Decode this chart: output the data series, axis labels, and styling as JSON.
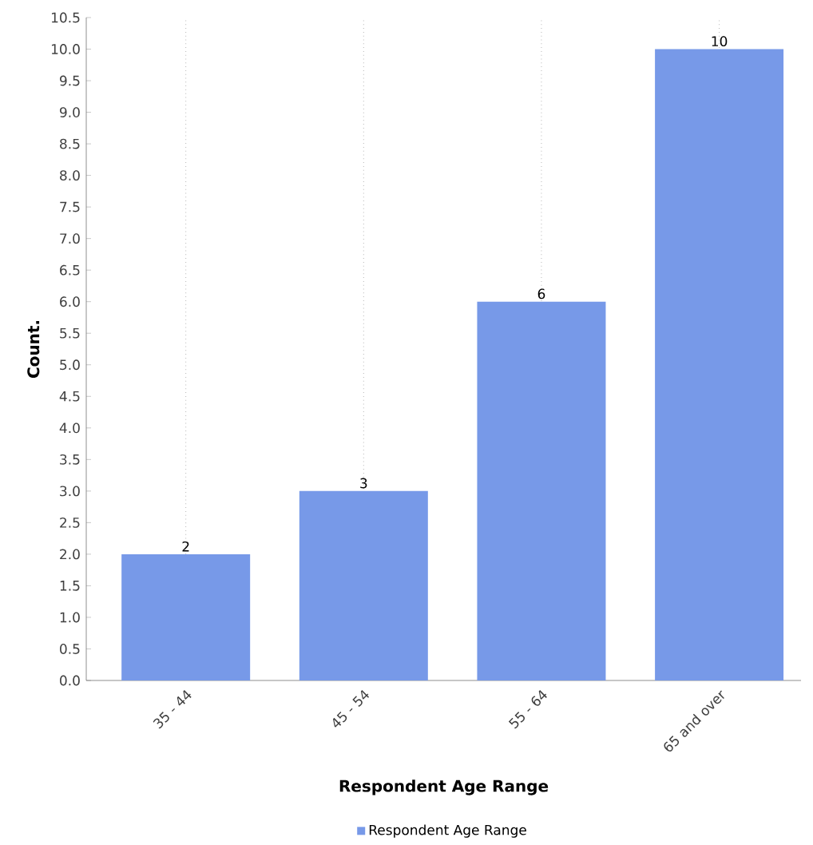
{
  "chart_data": {
    "type": "bar",
    "xlabel": "Respondent Age Range",
    "ylabel": "Count.",
    "categories": [
      "35 - 44",
      "45 - 54",
      "55 - 64",
      "65 and over"
    ],
    "series": [
      {
        "name": "Respondent Age Range",
        "color": "#7799e8",
        "values": [
          2,
          3,
          6,
          10
        ]
      }
    ],
    "ylim": [
      0,
      10.5
    ],
    "yticks": [
      {
        "value": 0,
        "label": "0.0"
      },
      {
        "value": 0.5,
        "label": "0.5"
      },
      {
        "value": 1,
        "label": "1.0"
      },
      {
        "value": 1.5,
        "label": "1.5"
      },
      {
        "value": 2,
        "label": "2.0"
      },
      {
        "value": 2.5,
        "label": "2.5"
      },
      {
        "value": 3,
        "label": "3.0"
      },
      {
        "value": 3.5,
        "label": "3.5"
      },
      {
        "value": 4,
        "label": "4.0"
      },
      {
        "value": 4.5,
        "label": "4.5"
      },
      {
        "value": 5,
        "label": "5.0"
      },
      {
        "value": 5.5,
        "label": "5.5"
      },
      {
        "value": 6,
        "label": "6.0"
      },
      {
        "value": 6.5,
        "label": "6.5"
      },
      {
        "value": 7,
        "label": "7.0"
      },
      {
        "value": 7.5,
        "label": "7.5"
      },
      {
        "value": 8,
        "label": "8.0"
      },
      {
        "value": 8.5,
        "label": "8.5"
      },
      {
        "value": 9,
        "label": "9.0"
      },
      {
        "value": 9.5,
        "label": "9.5"
      },
      {
        "value": 10,
        "label": "10.0"
      },
      {
        "value": 10.5,
        "label": "10.5"
      }
    ],
    "grid": "x",
    "legend": "bottom",
    "data_labels": true
  }
}
